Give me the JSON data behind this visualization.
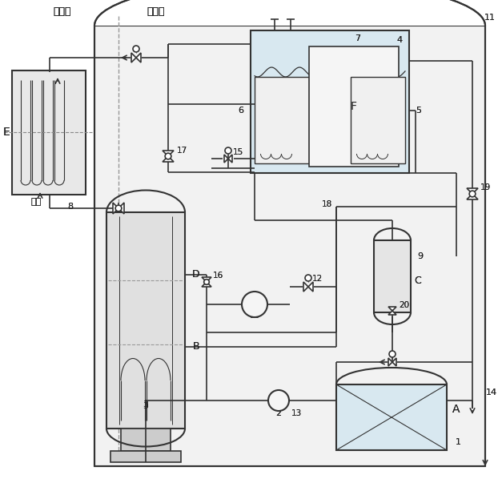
{
  "figsize": [
    6.22,
    5.98
  ],
  "dpi": 100,
  "lc": "#333333",
  "lw": 1.2,
  "labels": {
    "waiban": "船体外",
    "wainei": "船体内",
    "haishui": "海水",
    "E": "E",
    "B": "B",
    "D": "D",
    "C": "C",
    "A": "A",
    "F": "F"
  }
}
